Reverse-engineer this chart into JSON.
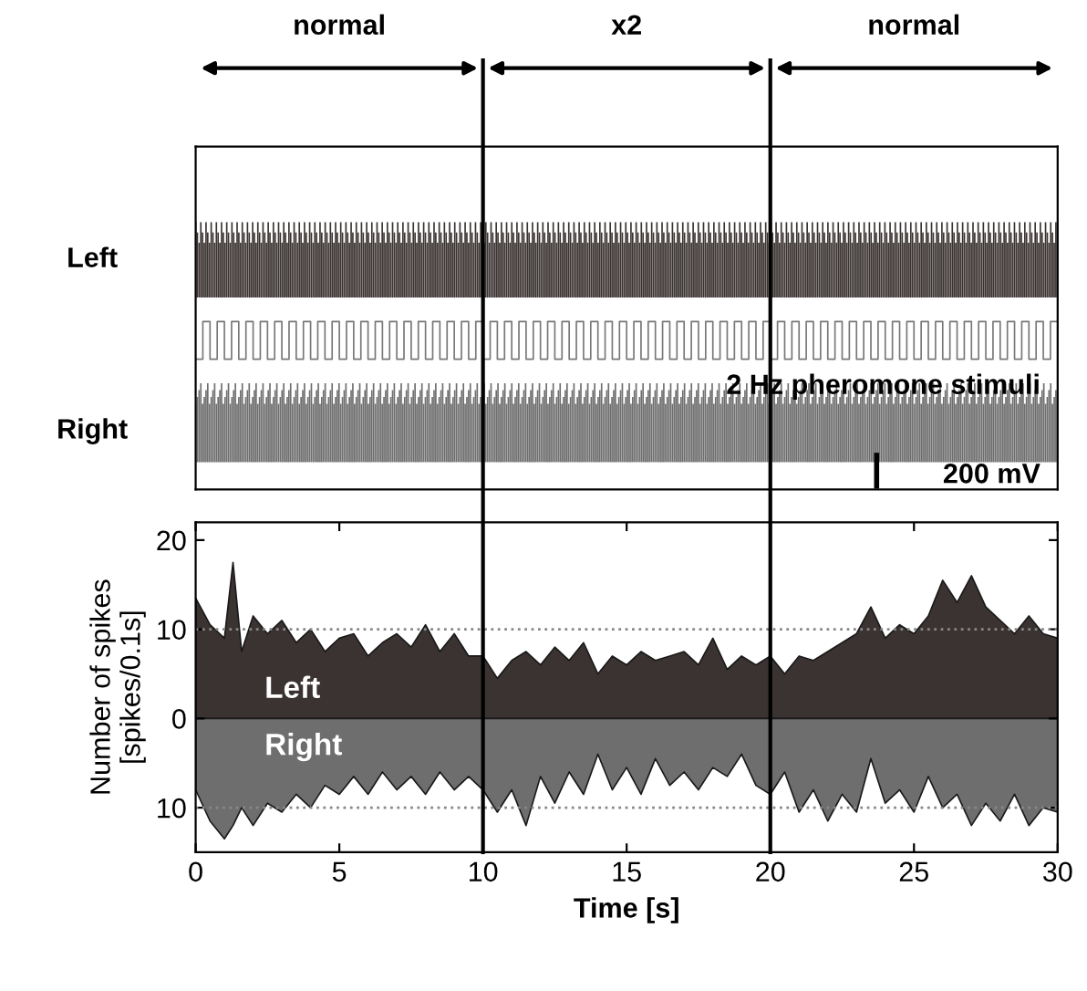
{
  "chart_data": [
    {
      "type": "other",
      "annotations": [
        "Left",
        "Right",
        "2 Hz pheromone stimuli",
        "200 mV"
      ]
    },
    {
      "type": "area",
      "xlabel": "Time [s]",
      "ylabel": "Number of spikes\n[spikes/0.1s]",
      "xlim": [
        0,
        30
      ],
      "xticks": [
        0,
        5,
        10,
        15,
        20,
        25,
        30
      ],
      "ylim": [
        -15,
        22
      ],
      "yticks": [
        20,
        10,
        0,
        {
          "value": -10,
          "label": "10"
        }
      ],
      "grid": false,
      "legend": false,
      "annotations": [
        "normal",
        "x2",
        "normal"
      ],
      "x": [
        0,
        0.5,
        1,
        1.3,
        1.6,
        2,
        2.5,
        3,
        3.5,
        4,
        4.5,
        5,
        5.5,
        6,
        6.5,
        7,
        7.5,
        8,
        8.5,
        9,
        9.5,
        10,
        10.5,
        11,
        11.5,
        12,
        12.5,
        13,
        13.5,
        14,
        14.5,
        15,
        15.5,
        16,
        16.5,
        17,
        17.5,
        18,
        18.5,
        19,
        19.5,
        20,
        20.5,
        21,
        21.5,
        22,
        22.5,
        23,
        23.5,
        24,
        24.5,
        25,
        25.5,
        26,
        26.5,
        27,
        27.5,
        28,
        28.5,
        29,
        29.5,
        30
      ],
      "series": [
        {
          "name": "Left",
          "color": "#3a3331",
          "values": [
            13.5,
            10.5,
            9,
            17.5,
            7.5,
            11.5,
            9.5,
            11,
            8.5,
            10,
            7.5,
            9,
            9.5,
            7,
            8.5,
            9.5,
            8,
            10.5,
            7.5,
            9.5,
            7,
            7,
            4.5,
            6.5,
            7.5,
            6,
            8,
            6.5,
            8.5,
            5,
            7,
            6,
            7.5,
            6.5,
            7,
            7.5,
            6,
            9,
            5.5,
            7,
            6,
            7,
            5,
            7,
            6.5,
            7.5,
            8.5,
            9.5,
            12.5,
            9,
            10.5,
            9.5,
            11.5,
            15.5,
            13,
            16,
            12.5,
            11,
            9.5,
            11.5,
            9.5,
            9
          ]
        },
        {
          "name": "Right",
          "color": "#6e6e6e",
          "values": [
            -8,
            -11.5,
            -13.5,
            -12,
            -10,
            -12,
            -9.5,
            -10.5,
            -8.5,
            -10,
            -7.5,
            -8.5,
            -6.5,
            -8.5,
            -6,
            -8,
            -6.5,
            -8.5,
            -6,
            -8,
            -6.5,
            -8,
            -10.5,
            -8,
            -12,
            -6.5,
            -9.5,
            -6,
            -8.5,
            -4,
            -8,
            -5.5,
            -8.5,
            -4.5,
            -7.5,
            -6,
            -8,
            -5.5,
            -6.5,
            -4,
            -7.5,
            -8.5,
            -6,
            -10.5,
            -8,
            -11.5,
            -8.5,
            -10.5,
            -4.5,
            -9.5,
            -8,
            -10.5,
            -6.5,
            -10,
            -8.5,
            -12,
            -9.5,
            -11.5,
            -8.5,
            -12,
            -10,
            -10.5
          ]
        }
      ],
      "ref_lines": [
        {
          "axis": "y",
          "value": 10,
          "color": "#888888",
          "line_style": "dotted"
        },
        {
          "axis": "y",
          "value": -10,
          "color": "#888888",
          "line_style": "dotted"
        },
        {
          "axis": "x",
          "value": 10,
          "color": "#000000",
          "line_style": "solid"
        },
        {
          "axis": "x",
          "value": 20,
          "color": "#000000",
          "line_style": "solid"
        }
      ]
    }
  ]
}
